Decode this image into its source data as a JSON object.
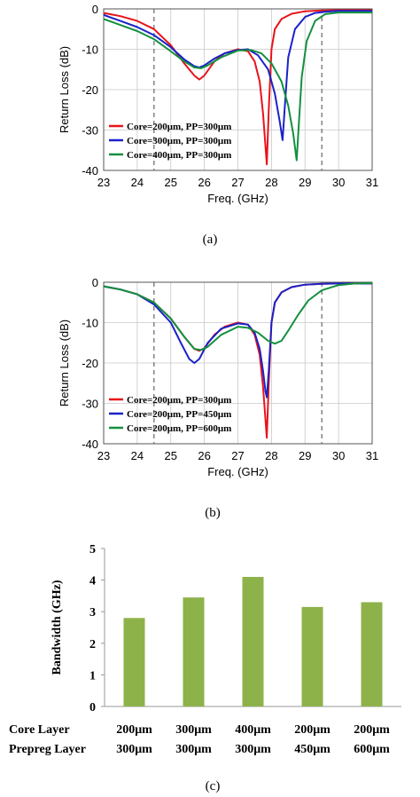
{
  "chart_data": [
    {
      "type": "line",
      "caption": "(a)",
      "xlabel": "Freq. (GHz)",
      "ylabel": "Return Loss (dB)",
      "xlim": [
        23,
        31
      ],
      "ylim": [
        -40,
        0
      ],
      "xticks": [
        "23",
        "24",
        "25",
        "26",
        "27",
        "28",
        "29",
        "30",
        "31"
      ],
      "yticks": [
        "0",
        "-10",
        "-20",
        "-30",
        "-40"
      ],
      "vlines": [
        24.5,
        29.5
      ],
      "legend_position": "bottom-left",
      "series": [
        {
          "name": "Core=200μm, PP=300μm",
          "color": "#e8131b",
          "x": [
            23,
            23.5,
            24,
            24.5,
            25,
            25.4,
            25.7,
            25.85,
            26,
            26.3,
            26.6,
            27,
            27.3,
            27.5,
            27.65,
            27.75,
            27.82,
            27.86,
            27.92,
            28,
            28.1,
            28.3,
            28.6,
            29,
            29.5,
            30,
            31
          ],
          "y": [
            -1,
            -1.8,
            -3,
            -5,
            -9,
            -13.5,
            -16.5,
            -17.5,
            -16.5,
            -13,
            -11,
            -10,
            -10.5,
            -13,
            -18,
            -26,
            -34,
            -38.5,
            -25,
            -10,
            -5,
            -2.5,
            -1.2,
            -0.6,
            -0.4,
            -0.3,
            -0.3
          ]
        },
        {
          "name": "Core=300μm, PP=300μm",
          "color": "#1a22c8",
          "x": [
            23,
            23.5,
            24,
            24.5,
            25,
            25.4,
            25.7,
            25.85,
            26,
            26.3,
            26.6,
            27,
            27.3,
            27.6,
            27.9,
            28.1,
            28.25,
            28.33,
            28.4,
            28.5,
            28.7,
            29,
            29.3,
            29.6,
            30,
            31
          ],
          "y": [
            -1.5,
            -3,
            -4.5,
            -6.5,
            -9.5,
            -12.5,
            -14.2,
            -14.5,
            -14,
            -12.3,
            -11,
            -10.2,
            -10,
            -11.5,
            -15,
            -21,
            -28,
            -32.5,
            -24,
            -12,
            -5,
            -2,
            -1,
            -0.7,
            -0.5,
            -0.5
          ]
        },
        {
          "name": "Core=400μm, PP=300μm",
          "color": "#13903f",
          "x": [
            23,
            23.5,
            24,
            24.5,
            25,
            25.4,
            25.7,
            25.9,
            26.1,
            26.5,
            27,
            27.4,
            27.7,
            28,
            28.3,
            28.5,
            28.65,
            28.75,
            28.82,
            28.9,
            29.05,
            29.3,
            29.6,
            30,
            31
          ],
          "y": [
            -2.5,
            -4,
            -5.5,
            -7.5,
            -10.5,
            -13,
            -14.5,
            -14.7,
            -14,
            -12,
            -10.3,
            -10.2,
            -11,
            -13.5,
            -18,
            -24,
            -31,
            -37.5,
            -28,
            -17,
            -8,
            -3,
            -1.3,
            -0.9,
            -0.9
          ]
        }
      ]
    },
    {
      "type": "line",
      "caption": "(b)",
      "xlabel": "Freq. (GHz)",
      "ylabel": "Return Loss (dB)",
      "xlim": [
        23,
        31
      ],
      "ylim": [
        -40,
        0
      ],
      "xticks": [
        "23",
        "24",
        "25",
        "26",
        "27",
        "28",
        "29",
        "30",
        "31"
      ],
      "yticks": [
        "0",
        "-10",
        "-20",
        "-30",
        "-40"
      ],
      "vlines": [
        24.5,
        29.5
      ],
      "legend_position": "bottom-left",
      "series": [
        {
          "name": "Core=200μm, PP=300μm",
          "color": "#e8131b",
          "x": [
            23,
            23.5,
            24,
            24.5,
            25,
            25.4,
            25.7,
            25.85,
            26,
            26.3,
            26.6,
            27,
            27.3,
            27.5,
            27.65,
            27.75,
            27.82,
            27.86,
            27.92,
            28,
            28.1,
            28.3,
            28.6,
            29,
            29.5,
            30,
            31
          ],
          "y": [
            -1,
            -1.8,
            -3,
            -5,
            -9,
            -13.5,
            -16.5,
            -17,
            -16.3,
            -13,
            -11,
            -10,
            -10.5,
            -13,
            -18,
            -26,
            -34,
            -38.5,
            -25,
            -10,
            -5,
            -2.5,
            -1.2,
            -0.6,
            -0.4,
            -0.3,
            -0.3
          ]
        },
        {
          "name": "Core=200μm, PP=450μm",
          "color": "#1a22c8",
          "x": [
            23,
            23.5,
            24,
            24.5,
            25,
            25.3,
            25.55,
            25.7,
            25.85,
            26.1,
            26.5,
            27,
            27.3,
            27.5,
            27.65,
            27.75,
            27.82,
            27.86,
            27.92,
            28,
            28.1,
            28.3,
            28.6,
            29,
            29.5,
            30,
            31
          ],
          "y": [
            -1,
            -1.8,
            -3,
            -5.5,
            -10,
            -15,
            -19,
            -20,
            -19,
            -15,
            -11.5,
            -10.2,
            -10.5,
            -12.5,
            -16.5,
            -22,
            -27,
            -28.5,
            -22,
            -10,
            -5,
            -2.5,
            -1.2,
            -0.6,
            -0.4,
            -0.3,
            -0.3
          ]
        },
        {
          "name": "Core=200μm, PP=600μm",
          "color": "#13903f",
          "x": [
            23,
            23.5,
            24,
            24.5,
            25,
            25.4,
            25.7,
            25.9,
            26.1,
            26.5,
            27,
            27.3,
            27.6,
            27.9,
            28.1,
            28.3,
            28.5,
            28.8,
            29.1,
            29.5,
            30,
            30.5,
            31
          ],
          "y": [
            -1,
            -1.8,
            -3,
            -5,
            -9,
            -13.5,
            -16.5,
            -16.8,
            -16,
            -13,
            -11,
            -11.3,
            -12.5,
            -14.5,
            -15.2,
            -14.5,
            -12,
            -8,
            -4.5,
            -2,
            -0.7,
            -0.3,
            -0.2
          ]
        }
      ]
    },
    {
      "type": "bar",
      "caption": "(c)",
      "ylabel": "Bandwidth (GHz)",
      "ylim": [
        0,
        5
      ],
      "yticks": [
        "0",
        "1",
        "2",
        "3",
        "4",
        "5"
      ],
      "row_labels": [
        "Core Layer",
        "Prepreg Layer"
      ],
      "categories": [
        {
          "core": "200μm",
          "prepreg": "300μm"
        },
        {
          "core": "300μm",
          "prepreg": "300μm"
        },
        {
          "core": "400μm",
          "prepreg": "300μm"
        },
        {
          "core": "200μm",
          "prepreg": "450μm"
        },
        {
          "core": "200μm",
          "prepreg": "600μm"
        }
      ],
      "values": [
        2.8,
        3.45,
        4.1,
        3.15,
        3.3
      ],
      "bar_color": "#8db24a"
    }
  ]
}
